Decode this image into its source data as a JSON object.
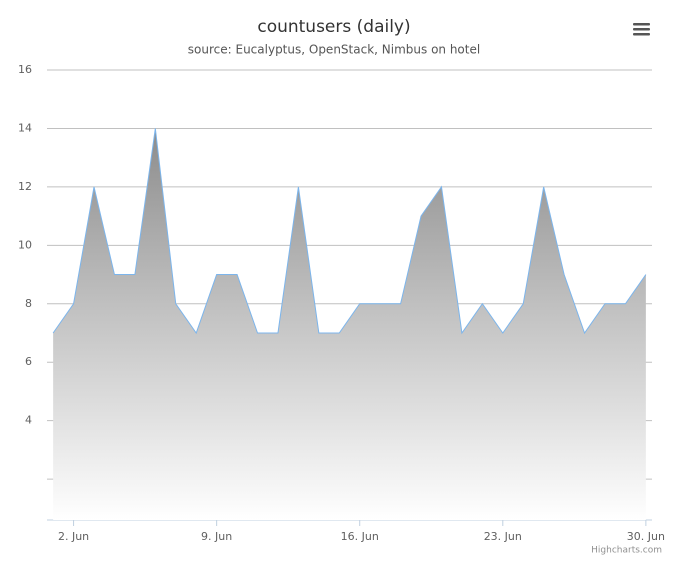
{
  "chart_data": {
    "type": "area",
    "title": "countusers (daily)",
    "subtitle": "source: Eucalyptus, OpenStack, Nimbus on hotel",
    "credits": "Highcharts.com",
    "x": [
      1,
      2,
      3,
      4,
      5,
      6,
      7,
      8,
      9,
      10,
      11,
      12,
      13,
      14,
      15,
      16,
      17,
      18,
      19,
      20,
      21,
      22,
      23,
      24,
      25,
      26,
      27,
      28,
      29,
      30
    ],
    "values": [
      7,
      8,
      12,
      9,
      9,
      14,
      8,
      7,
      9,
      9,
      7,
      7,
      12,
      7,
      7,
      8,
      8,
      8,
      11,
      12,
      7,
      8,
      7,
      8,
      12,
      9,
      7,
      8,
      8,
      9
    ],
    "color": "#7cb5ec",
    "xlim": [
      0.7,
      30.3
    ],
    "xticks": [
      {
        "value": 2,
        "label": "2. Jun"
      },
      {
        "value": 9,
        "label": "9. Jun"
      },
      {
        "value": 16,
        "label": "16. Jun"
      },
      {
        "value": 23,
        "label": "23. Jun"
      },
      {
        "value": 30,
        "label": "30. Jun"
      }
    ],
    "ylim": [
      0.6,
      16
    ],
    "yticks": [
      {
        "value": 2,
        "label": null
      },
      4,
      6,
      8,
      10,
      12,
      14,
      16
    ],
    "grid": true
  }
}
